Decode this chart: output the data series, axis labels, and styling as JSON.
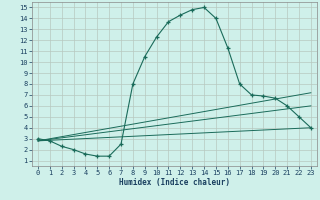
{
  "bg_color": "#cff0ea",
  "grid_color": "#b8c8c0",
  "line_color": "#1a6b5a",
  "marker": "+",
  "xlabel": "Humidex (Indice chaleur)",
  "xlim": [
    -0.5,
    23.5
  ],
  "ylim": [
    0.5,
    15.5
  ],
  "xticks": [
    0,
    1,
    2,
    3,
    4,
    5,
    6,
    7,
    8,
    9,
    10,
    11,
    12,
    13,
    14,
    15,
    16,
    17,
    18,
    19,
    20,
    21,
    22,
    23
  ],
  "yticks": [
    1,
    2,
    3,
    4,
    5,
    6,
    7,
    8,
    9,
    10,
    11,
    12,
    13,
    14,
    15
  ],
  "main_x": [
    0,
    1,
    2,
    3,
    4,
    5,
    6,
    7,
    8,
    9,
    10,
    11,
    12,
    13,
    14,
    15,
    16,
    17,
    18,
    19,
    20,
    21,
    22,
    23
  ],
  "main_y": [
    3.0,
    2.8,
    2.3,
    2.0,
    1.6,
    1.4,
    1.4,
    2.5,
    8.0,
    10.5,
    12.3,
    13.7,
    14.3,
    14.8,
    15.0,
    14.0,
    11.3,
    8.0,
    7.0,
    6.9,
    6.7,
    6.0,
    5.0,
    4.0
  ],
  "line2_x": [
    0,
    23
  ],
  "line2_y": [
    2.8,
    7.2
  ],
  "line3_x": [
    0,
    23
  ],
  "line3_y": [
    2.8,
    6.0
  ],
  "line4_x": [
    0,
    23
  ],
  "line4_y": [
    2.8,
    4.0
  ],
  "title_color": "#1a4060",
  "tick_color": "#1a4060",
  "xlabel_color": "#1a4060"
}
